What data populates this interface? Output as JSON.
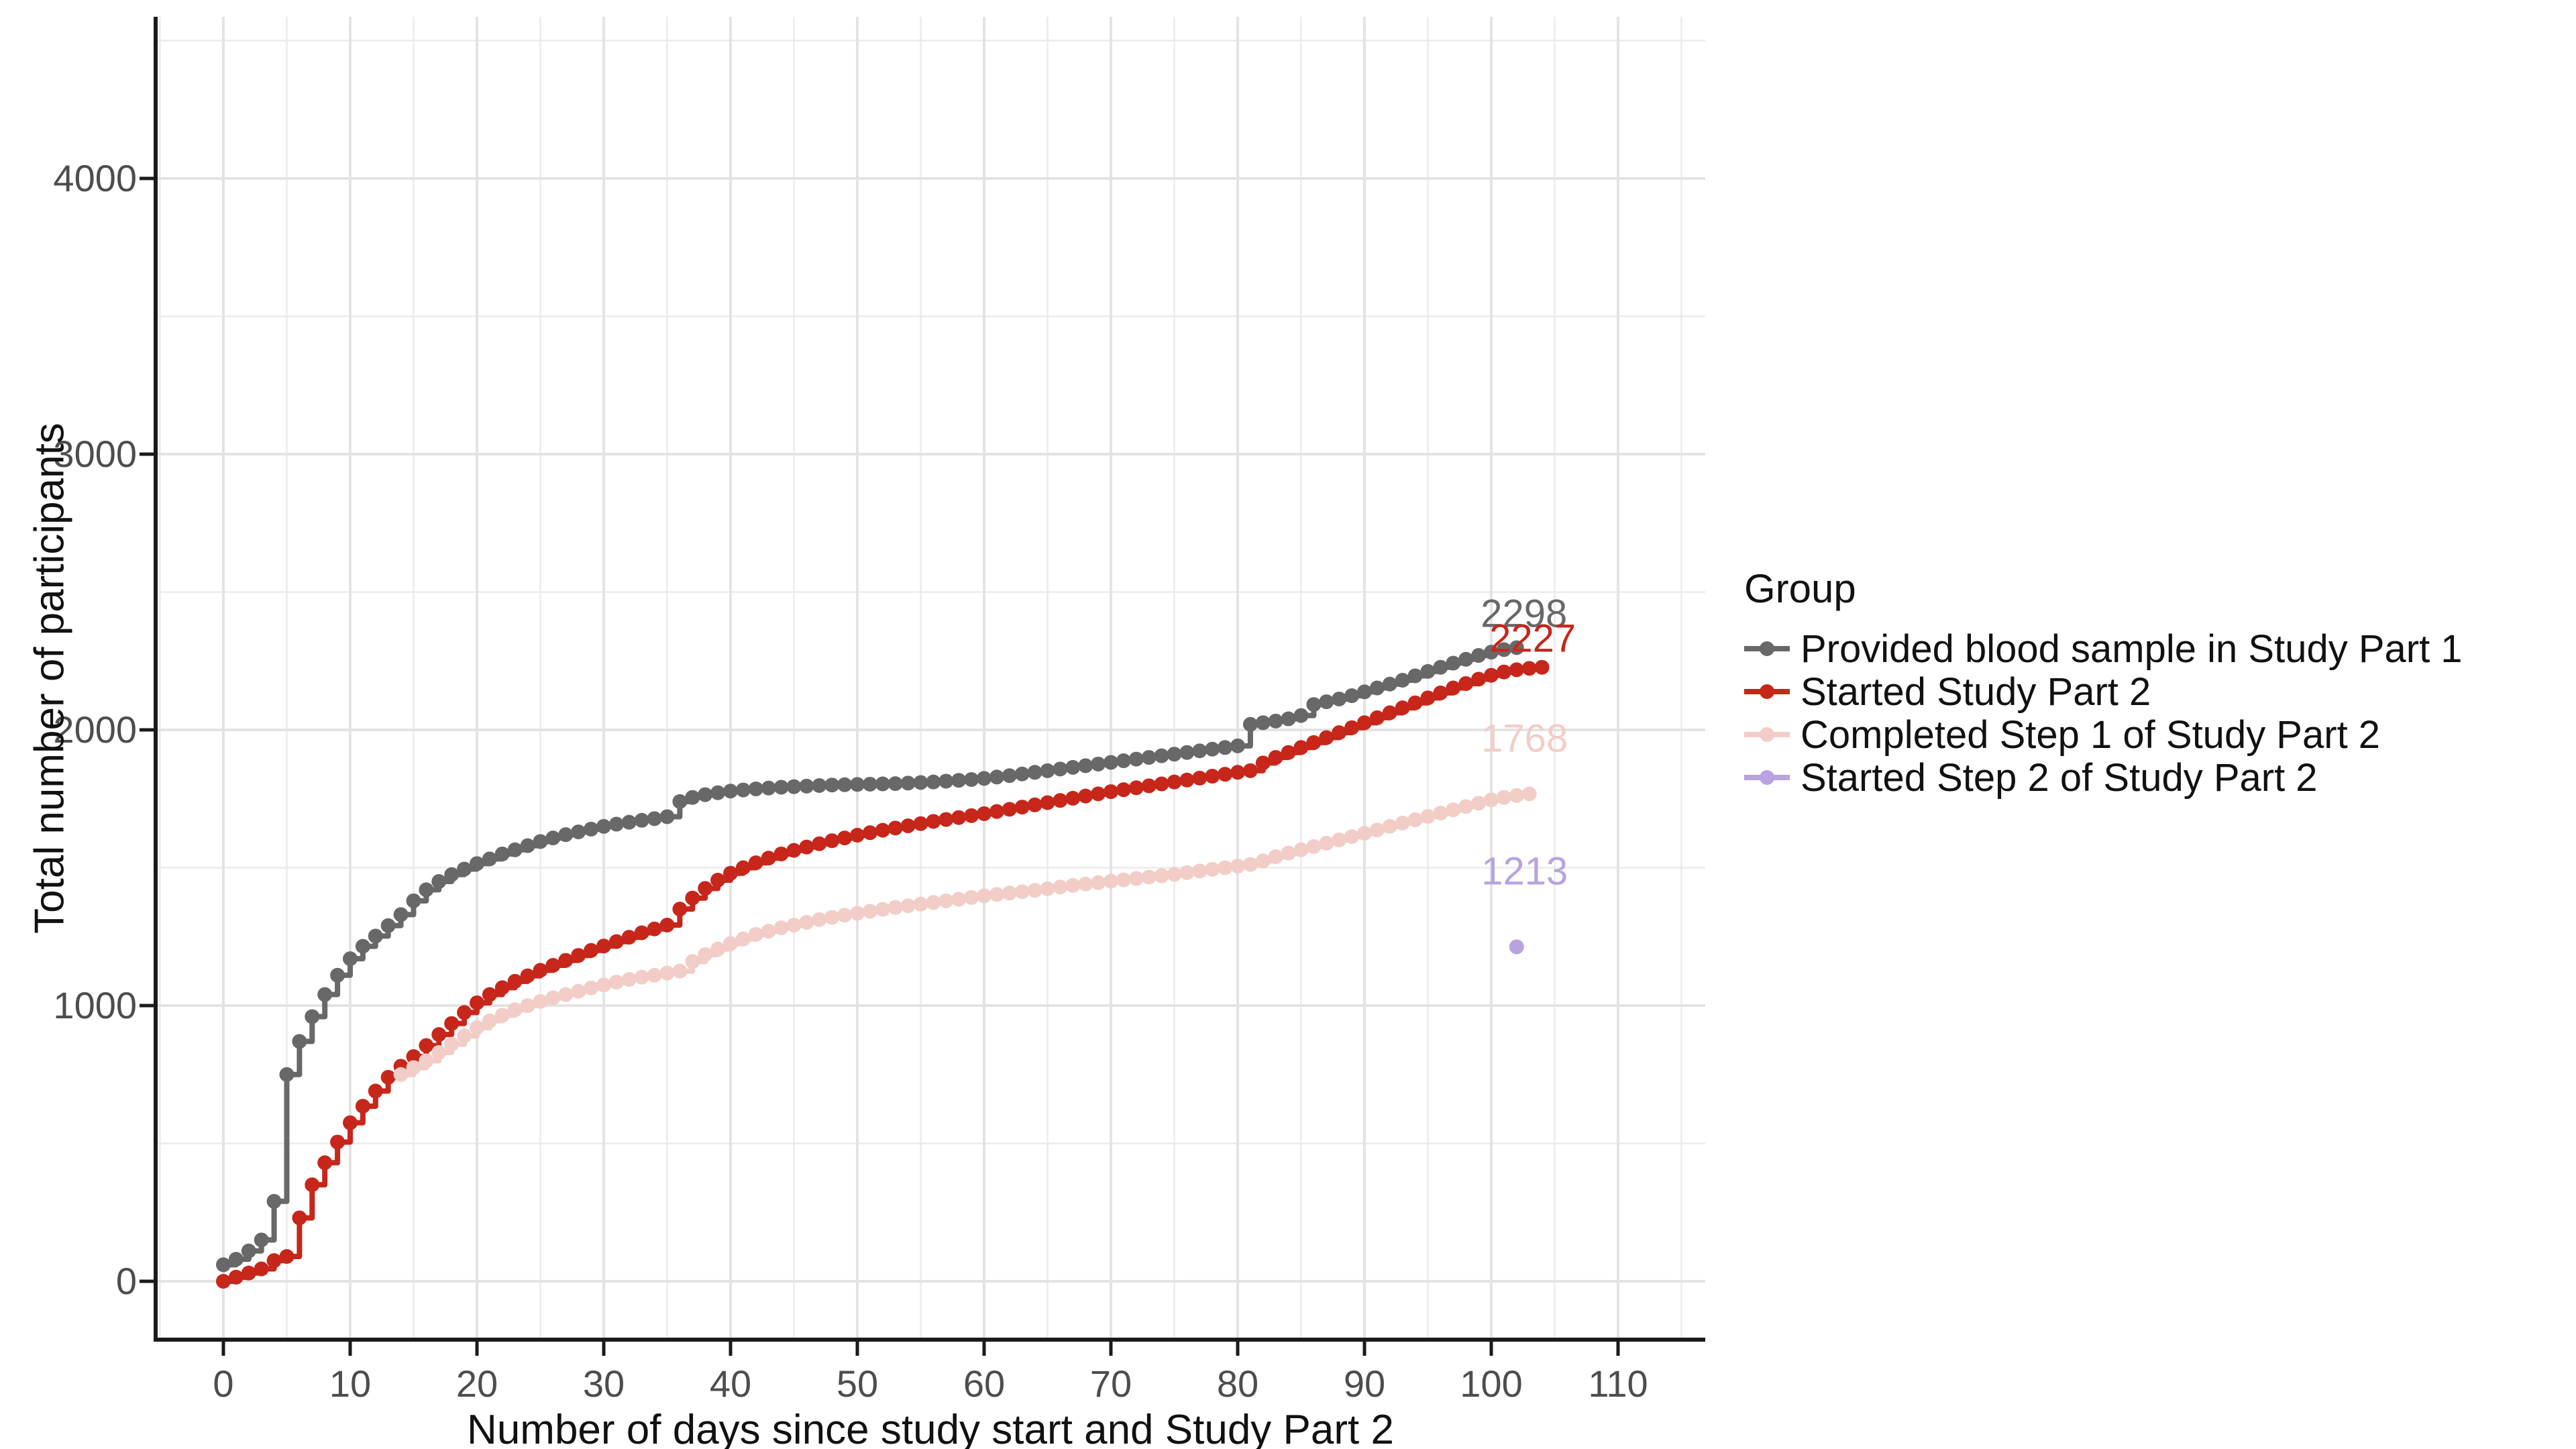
{
  "figure": {
    "background": "#FFFFFF"
  },
  "chart_data": {
    "type": "line",
    "variant": "step-with-points",
    "title": "",
    "xlabel": "Number of days since study start and Study Part 2",
    "ylabel": "Total number of participants",
    "legend_title": "Group",
    "legend_position": "right",
    "grid": "on",
    "x_ticks": [
      0,
      10,
      20,
      30,
      40,
      50,
      60,
      70,
      80,
      90,
      100,
      110
    ],
    "y_ticks": [
      0,
      1000,
      2000,
      3000,
      4000
    ],
    "xlim": [
      -5.5,
      117
    ],
    "ylim": [
      0,
      4600
    ],
    "style": {
      "background": "#FFFFFF",
      "grid_major_color": "#E3E3E3",
      "grid_minor_color": "#EBEBEB",
      "axis_line_color": "#1A1A1A",
      "tick_label_color": "#4D4D4D"
    },
    "series": [
      {
        "name": "Provided blood sample in Study Part 1",
        "color": "#686868",
        "x_start": 0,
        "x_step": 1,
        "end_label": "2298",
        "values": [
          60,
          80,
          110,
          150,
          290,
          750,
          870,
          960,
          1040,
          1110,
          1170,
          1215,
          1252,
          1290,
          1330,
          1380,
          1420,
          1450,
          1475,
          1495,
          1515,
          1532,
          1550,
          1565,
          1580,
          1595,
          1608,
          1620,
          1630,
          1640,
          1650,
          1658,
          1665,
          1672,
          1678,
          1685,
          1740,
          1755,
          1765,
          1772,
          1778,
          1782,
          1786,
          1789,
          1792,
          1794,
          1796,
          1798,
          1800,
          1801,
          1802,
          1803,
          1804,
          1805,
          1807,
          1809,
          1811,
          1814,
          1817,
          1820,
          1824,
          1829,
          1834,
          1840,
          1846,
          1852,
          1858,
          1864,
          1870,
          1876,
          1882,
          1888,
          1894,
          1900,
          1906,
          1912,
          1918,
          1924,
          1930,
          1936,
          1942,
          2020,
          2026,
          2032,
          2040,
          2052,
          2092,
          2102,
          2112,
          2124,
          2138,
          2152,
          2166,
          2180,
          2196,
          2212,
          2227,
          2242,
          2256,
          2270,
          2282,
          2291,
          2298
        ]
      },
      {
        "name": "Started Study Part 2",
        "color": "#C7261B",
        "x_start": 0,
        "x_step": 1,
        "end_label": "2227",
        "values": [
          0,
          15,
          30,
          45,
          75,
          90,
          230,
          350,
          430,
          505,
          575,
          635,
          690,
          740,
          780,
          815,
          855,
          895,
          935,
          975,
          1010,
          1040,
          1065,
          1088,
          1108,
          1128,
          1146,
          1164,
          1182,
          1200,
          1216,
          1232,
          1248,
          1264,
          1278,
          1292,
          1350,
          1390,
          1425,
          1455,
          1480,
          1500,
          1518,
          1535,
          1550,
          1563,
          1575,
          1587,
          1598,
          1608,
          1618,
          1627,
          1636,
          1644,
          1652,
          1660,
          1668,
          1675,
          1682,
          1689,
          1696,
          1704,
          1712,
          1720,
          1728,
          1736,
          1744,
          1752,
          1760,
          1768,
          1776,
          1783,
          1790,
          1797,
          1804,
          1811,
          1818,
          1825,
          1832,
          1839,
          1846,
          1852,
          1880,
          1900,
          1918,
          1936,
          1954,
          1972,
          1990,
          2008,
          2026,
          2044,
          2062,
          2080,
          2098,
          2116,
          2134,
          2152,
          2168,
          2184,
          2198,
          2210,
          2218,
          2223,
          2227
        ]
      },
      {
        "name": "Completed Step 1 of Study Part 2",
        "color": "#F2CDC7",
        "x_start": 14,
        "x_step": 1,
        "end_label": "1768",
        "values": [
          750,
          775,
          800,
          830,
          860,
          890,
          920,
          945,
          965,
          985,
          1000,
          1015,
          1028,
          1040,
          1052,
          1064,
          1075,
          1085,
          1095,
          1103,
          1110,
          1118,
          1125,
          1160,
          1185,
          1205,
          1225,
          1242,
          1258,
          1270,
          1282,
          1292,
          1302,
          1312,
          1320,
          1328,
          1335,
          1342,
          1349,
          1356,
          1362,
          1368,
          1374,
          1380,
          1386,
          1392,
          1398,
          1403,
          1408,
          1413,
          1418,
          1424,
          1430,
          1436,
          1441,
          1446,
          1451,
          1456,
          1461,
          1466,
          1471,
          1476,
          1482,
          1488,
          1494,
          1500,
          1506,
          1512,
          1525,
          1540,
          1553,
          1565,
          1577,
          1589,
          1601,
          1613,
          1625,
          1637,
          1650,
          1662,
          1674,
          1686,
          1698,
          1710,
          1722,
          1734,
          1746,
          1755,
          1762,
          1768
        ]
      },
      {
        "name": "Started Step 2 of Study Part 2",
        "color": "#B7A3E0",
        "x_start": 102,
        "x_step": 1,
        "end_label": "1213",
        "values": [
          1213
        ]
      }
    ]
  }
}
